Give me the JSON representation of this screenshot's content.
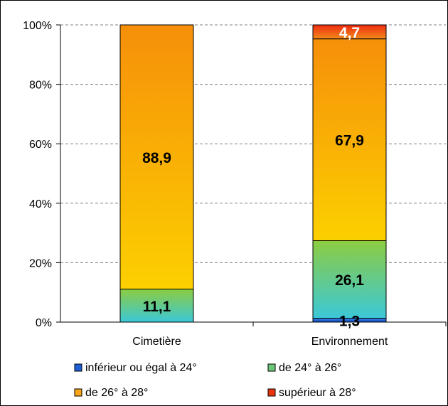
{
  "chart_data": {
    "type": "bar",
    "stacked": true,
    "percent": true,
    "categories": [
      "Cimetière",
      "Environnement"
    ],
    "series": [
      {
        "name": "inférieur ou égal à 24°",
        "values": [
          0,
          1.3
        ],
        "labels": [
          "",
          "1,3"
        ],
        "color": "#1f5fd6",
        "label_color": "#000000"
      },
      {
        "name": "de 24° à 26°",
        "values": [
          11.1,
          26.1
        ],
        "labels": [
          "11,1",
          "26,1"
        ],
        "color": "#6cc878",
        "label_color": "#000000"
      },
      {
        "name": "de 26° à 28°",
        "values": [
          88.9,
          67.9
        ],
        "labels": [
          "88,9",
          "67,9"
        ],
        "color": "#f9a51a",
        "label_color": "#000000"
      },
      {
        "name": "supérieur à 28°",
        "values": [
          0,
          4.7
        ],
        "labels": [
          "",
          "4,7"
        ],
        "color": "#e8350f",
        "label_color": "#ffffff"
      }
    ],
    "ylim": [
      0,
      100
    ],
    "yticks": [
      "0%",
      "20%",
      "40%",
      "60%",
      "80%",
      "100%"
    ],
    "grid": true,
    "legend_position": "bottom"
  }
}
